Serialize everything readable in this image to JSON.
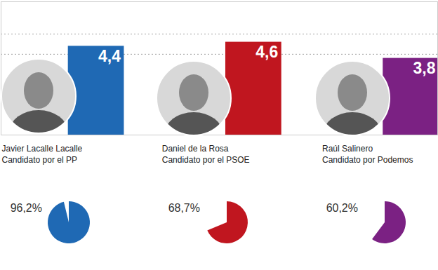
{
  "chart_data": [
    {
      "type": "bar",
      "categories": [
        "Javier Lacalle Lacalle",
        "Daniel de la Rosa",
        "Raúl Salinero"
      ],
      "annotations": [
        "Candidato por el PP",
        "Candidato por el PSOE",
        "Candidato por Podemos"
      ],
      "values": [
        4.4,
        4.6,
        3.8
      ],
      "value_labels": [
        "4,4",
        "4,6",
        "3,8"
      ],
      "colors": [
        "#1f69b4",
        "#c0161f",
        "#7b2183"
      ],
      "ylim": [
        0,
        6.6
      ],
      "yticks": [
        4,
        5
      ],
      "grid": true,
      "tick_labels": false,
      "data_labels": true
    },
    {
      "type": "pie",
      "values": [
        96.2,
        68.7,
        60.2
      ],
      "value_labels": [
        "96,2%",
        "68,7%",
        "60,2%"
      ],
      "colors": [
        "#1f69b4",
        "#c0161f",
        "#7b2183"
      ],
      "data_labels": true
    }
  ]
}
